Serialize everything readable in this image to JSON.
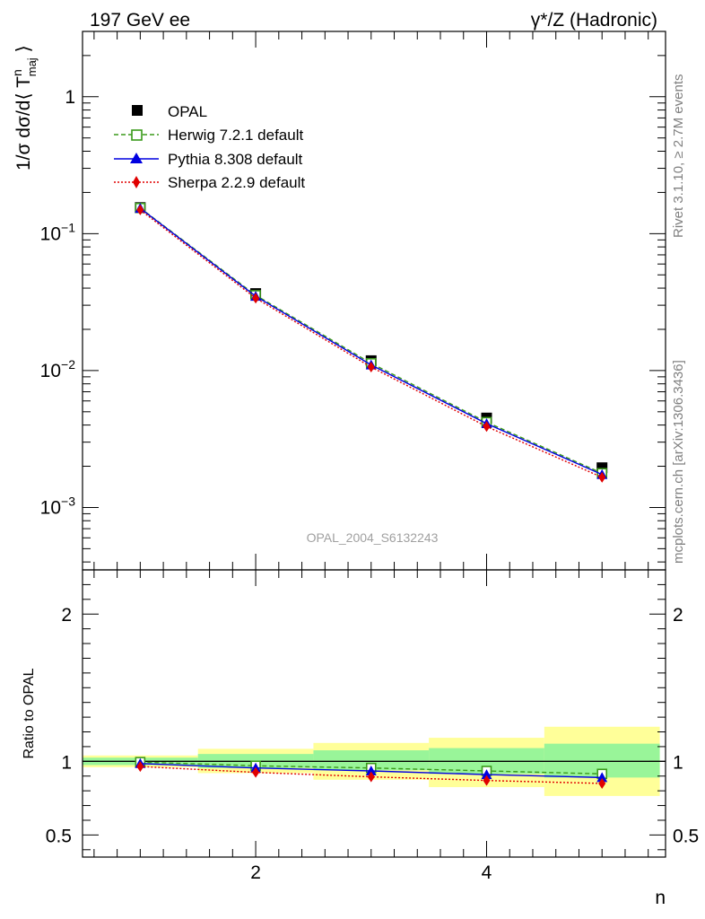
{
  "chart_data": {
    "type": "line",
    "header": {
      "left": "197 GeV ee",
      "right_main": "γ*/Z (Hadronic)"
    },
    "side_labels": {
      "rivet": "Rivet 3.1.10, ≥ 2.7M events",
      "mcplots": "mcplots.cern.ch [arXiv:1306.3436]"
    },
    "watermark": "OPAL_2004_S6132243",
    "main": {
      "ylabel": {
        "prefix": "1/σ dσ/d⟨ T",
        "sup": "n",
        "sub": "maj",
        "suffix": " ⟩"
      },
      "yscale": "log",
      "ylim": [
        0.00035,
        3.0
      ],
      "yticks": [
        {
          "value": 1,
          "base": "1",
          "exp": ""
        },
        {
          "value": 0.1,
          "base": "10",
          "exp": "−1"
        },
        {
          "value": 0.01,
          "base": "10",
          "exp": "−2"
        },
        {
          "value": 0.001,
          "base": "10",
          "exp": "−3"
        }
      ]
    },
    "ratio": {
      "ylabel": "Ratio to OPAL",
      "ylim": [
        0.35,
        2.3
      ],
      "yticks": [
        {
          "value": 0.5,
          "label": "0.5"
        },
        {
          "value": 1,
          "label": "1"
        },
        {
          "value": 2,
          "label": "2"
        }
      ],
      "band_inner": [
        {
          "x0": 0.5,
          "x1": 1.5,
          "lo": 0.975,
          "hi": 1.025
        },
        {
          "x0": 1.5,
          "x1": 2.5,
          "lo": 0.955,
          "hi": 1.05
        },
        {
          "x0": 2.5,
          "x1": 3.5,
          "lo": 0.94,
          "hi": 1.075
        },
        {
          "x0": 3.5,
          "x1": 4.5,
          "lo": 0.915,
          "hi": 1.09
        },
        {
          "x0": 4.5,
          "x1": 5.5,
          "lo": 0.89,
          "hi": 1.12
        }
      ],
      "band_outer": [
        {
          "x0": 0.5,
          "x1": 1.5,
          "lo": 0.96,
          "hi": 1.04
        },
        {
          "x0": 1.5,
          "x1": 2.5,
          "lo": 0.92,
          "hi": 1.085
        },
        {
          "x0": 2.5,
          "x1": 3.5,
          "lo": 0.875,
          "hi": 1.125
        },
        {
          "x0": 3.5,
          "x1": 4.5,
          "lo": 0.825,
          "hi": 1.16
        },
        {
          "x0": 4.5,
          "x1": 5.5,
          "lo": 0.765,
          "hi": 1.235
        }
      ],
      "series": [
        {
          "name": "Herwig 7.2.1 default",
          "values": [
            0.995,
            0.97,
            0.955,
            0.935,
            0.915
          ]
        },
        {
          "name": "Pythia 8.308 default",
          "values": [
            0.985,
            0.955,
            0.935,
            0.91,
            0.89
          ]
        },
        {
          "name": "Sherpa 2.2.9 default",
          "values": [
            0.965,
            0.925,
            0.895,
            0.87,
            0.85
          ]
        }
      ]
    },
    "xlabel": "n",
    "xlim": [
      0.5,
      5.55
    ],
    "xticks": [
      2,
      4
    ],
    "x": [
      1,
      2,
      3,
      4,
      5
    ],
    "series": [
      {
        "name": "OPAL",
        "marker": "square-filled",
        "style": "none",
        "color": "#000000",
        "values": [
          0.155,
          0.0365,
          0.0118,
          0.0045,
          0.00195
        ]
      },
      {
        "name": "Herwig 7.2.1 default",
        "marker": "square-open",
        "style": "dashed",
        "color": "#3a9a1a",
        "values": [
          0.154,
          0.0355,
          0.0113,
          0.0042,
          0.00178
        ]
      },
      {
        "name": "Pythia 8.308 default",
        "marker": "triangle",
        "style": "solid",
        "color": "#0000e0",
        "values": [
          0.153,
          0.0349,
          0.011,
          0.0041,
          0.00174
        ]
      },
      {
        "name": "Sherpa 2.2.9 default",
        "marker": "diamond",
        "style": "dotted",
        "color": "#e00000",
        "values": [
          0.149,
          0.0338,
          0.0106,
          0.0039,
          0.00166
        ]
      }
    ],
    "colors": {
      "band_inner": "#99f599",
      "band_outer": "#ffff99"
    }
  }
}
